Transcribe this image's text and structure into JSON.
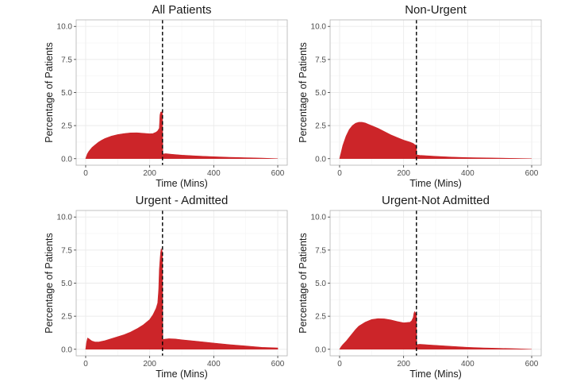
{
  "chart_data": [
    {
      "type": "area",
      "title": "All Patients",
      "xlabel": "Time (Mins)",
      "ylabel": "Percentage of Patients",
      "xlim": [
        0,
        600
      ],
      "ylim": [
        0,
        10
      ],
      "xticks": [
        0,
        200,
        400,
        600
      ],
      "yticks": [
        "0.0",
        "2.5",
        "5.0",
        "7.5",
        "10.0"
      ],
      "vline": 240,
      "fill_color": "#cc2529",
      "series": [
        {
          "x": [
            0,
            5,
            10,
            20,
            30,
            40,
            50,
            60,
            80,
            100,
            120,
            140,
            160,
            180,
            200,
            210,
            220,
            225,
            230,
            232,
            234,
            236,
            238,
            240,
            241,
            250,
            270,
            300,
            350,
            400,
            450,
            500,
            550,
            600
          ],
          "y": [
            0.0,
            0.35,
            0.55,
            0.85,
            1.05,
            1.25,
            1.4,
            1.52,
            1.7,
            1.82,
            1.9,
            1.95,
            1.96,
            1.92,
            1.88,
            1.9,
            2.0,
            2.1,
            2.3,
            3.3,
            3.5,
            3.55,
            3.5,
            3.4,
            0.35,
            0.38,
            0.33,
            0.27,
            0.2,
            0.15,
            0.1,
            0.07,
            0.04,
            0.0
          ]
        }
      ]
    },
    {
      "type": "area",
      "title": "Non-Urgent",
      "xlabel": "Time (Mins)",
      "ylabel": "Percentage of Patients",
      "xlim": [
        0,
        600
      ],
      "ylim": [
        0,
        10
      ],
      "xticks": [
        0,
        200,
        400,
        600
      ],
      "yticks": [
        "0.0",
        "2.5",
        "5.0",
        "7.5",
        "10.0"
      ],
      "vline": 240,
      "fill_color": "#cc2529",
      "series": [
        {
          "x": [
            0,
            5,
            10,
            20,
            30,
            40,
            50,
            60,
            70,
            80,
            90,
            100,
            120,
            140,
            160,
            180,
            200,
            220,
            230,
            235,
            240,
            241,
            250,
            300,
            350,
            400,
            500,
            600
          ],
          "y": [
            0.0,
            0.5,
            1.0,
            1.7,
            2.2,
            2.5,
            2.68,
            2.75,
            2.75,
            2.7,
            2.6,
            2.5,
            2.3,
            2.05,
            1.8,
            1.6,
            1.4,
            1.25,
            1.15,
            1.05,
            1.0,
            0.28,
            0.25,
            0.18,
            0.12,
            0.08,
            0.04,
            0.0
          ]
        }
      ]
    },
    {
      "type": "area",
      "title": "Urgent - Admitted",
      "xlabel": "Time (Mins)",
      "ylabel": "Percentage of Patients",
      "xlim": [
        0,
        600
      ],
      "ylim": [
        0,
        10
      ],
      "xticks": [
        0,
        200,
        400,
        600
      ],
      "yticks": [
        "0.0",
        "2.5",
        "5.0",
        "7.5",
        "10.0"
      ],
      "vline": 240,
      "fill_color": "#cc2529",
      "series": [
        {
          "x": [
            0,
            3,
            6,
            10,
            15,
            20,
            30,
            40,
            60,
            80,
            100,
            120,
            140,
            160,
            180,
            200,
            210,
            220,
            225,
            228,
            230,
            232,
            234,
            236,
            238,
            240,
            241,
            260,
            280,
            300,
            350,
            400,
            450,
            500,
            550,
            600
          ],
          "y": [
            0.0,
            0.55,
            0.85,
            0.8,
            0.7,
            0.62,
            0.55,
            0.55,
            0.65,
            0.8,
            0.95,
            1.1,
            1.3,
            1.55,
            1.85,
            2.25,
            2.6,
            3.1,
            3.5,
            4.5,
            6.0,
            6.7,
            7.3,
            7.6,
            7.5,
            7.3,
            0.75,
            0.8,
            0.78,
            0.72,
            0.6,
            0.47,
            0.35,
            0.25,
            0.15,
            0.1
          ]
        }
      ]
    },
    {
      "type": "area",
      "title": "Urgent-Not Admitted",
      "xlabel": "Time (Mins)",
      "ylabel": "Percentage of Patients",
      "xlim": [
        0,
        600
      ],
      "ylim": [
        0,
        10
      ],
      "xticks": [
        0,
        200,
        400,
        600
      ],
      "yticks": [
        "0.0",
        "2.5",
        "5.0",
        "7.5",
        "10.0"
      ],
      "vline": 240,
      "fill_color": "#cc2529",
      "series": [
        {
          "x": [
            0,
            5,
            10,
            20,
            30,
            40,
            50,
            60,
            80,
            100,
            120,
            140,
            160,
            180,
            200,
            220,
            225,
            230,
            232,
            234,
            236,
            238,
            240,
            241,
            250,
            280,
            300,
            350,
            400,
            450,
            500,
            550,
            600
          ],
          "y": [
            0.0,
            0.2,
            0.35,
            0.6,
            0.9,
            1.2,
            1.5,
            1.75,
            2.05,
            2.25,
            2.32,
            2.3,
            2.22,
            2.1,
            2.0,
            2.05,
            2.15,
            2.4,
            2.7,
            2.85,
            2.8,
            2.7,
            2.6,
            0.35,
            0.38,
            0.33,
            0.3,
            0.22,
            0.15,
            0.1,
            0.07,
            0.04,
            0.0
          ]
        }
      ]
    }
  ]
}
